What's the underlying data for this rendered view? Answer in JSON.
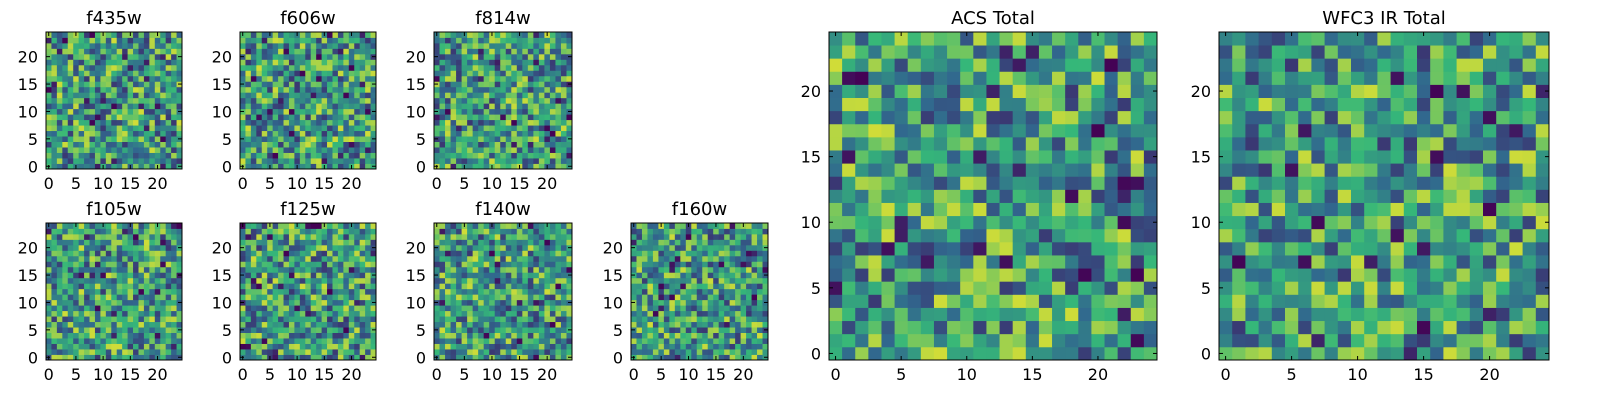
{
  "chart_data": [
    {
      "type": "heatmap",
      "title": "f435w",
      "x_ticks": [
        "0",
        "5",
        "10",
        "15",
        "20"
      ],
      "y_ticks": [
        "0",
        "5",
        "10",
        "15",
        "20"
      ],
      "xlim": [
        -0.5,
        24.5
      ],
      "ylim": [
        -0.5,
        24.5
      ],
      "grid_size": 25,
      "colormap": "viridis",
      "seed": 1,
      "colors": [
        "#440154",
        "#31688e",
        "#35b779",
        "#fde725"
      ]
    },
    {
      "type": "heatmap",
      "title": "f606w",
      "x_ticks": [
        "0",
        "5",
        "10",
        "15",
        "20"
      ],
      "y_ticks": [
        "0",
        "5",
        "10",
        "15",
        "20"
      ],
      "xlim": [
        -0.5,
        24.5
      ],
      "ylim": [
        -0.5,
        24.5
      ],
      "grid_size": 25,
      "colormap": "viridis",
      "seed": 2,
      "colors": [
        "#440154",
        "#31688e",
        "#35b779",
        "#fde725"
      ]
    },
    {
      "type": "heatmap",
      "title": "f814w",
      "x_ticks": [
        "0",
        "5",
        "10",
        "15",
        "20"
      ],
      "y_ticks": [
        "0",
        "5",
        "10",
        "15",
        "20"
      ],
      "xlim": [
        -0.5,
        24.5
      ],
      "ylim": [
        -0.5,
        24.5
      ],
      "grid_size": 25,
      "colormap": "viridis",
      "seed": 3,
      "colors": [
        "#440154",
        "#31688e",
        "#35b779",
        "#fde725"
      ]
    },
    {
      "type": "heatmap",
      "title": "f105w",
      "x_ticks": [
        "0",
        "5",
        "10",
        "15",
        "20"
      ],
      "y_ticks": [
        "0",
        "5",
        "10",
        "15",
        "20"
      ],
      "xlim": [
        -0.5,
        24.5
      ],
      "ylim": [
        -0.5,
        24.5
      ],
      "grid_size": 25,
      "colormap": "viridis",
      "seed": 4,
      "colors": [
        "#440154",
        "#31688e",
        "#35b779",
        "#fde725"
      ]
    },
    {
      "type": "heatmap",
      "title": "f125w",
      "x_ticks": [
        "0",
        "5",
        "10",
        "15",
        "20"
      ],
      "y_ticks": [
        "0",
        "5",
        "10",
        "15",
        "20"
      ],
      "xlim": [
        -0.5,
        24.5
      ],
      "ylim": [
        -0.5,
        24.5
      ],
      "grid_size": 25,
      "colormap": "viridis",
      "seed": 5,
      "colors": [
        "#440154",
        "#31688e",
        "#35b779",
        "#fde725"
      ]
    },
    {
      "type": "heatmap",
      "title": "f140w",
      "x_ticks": [
        "0",
        "5",
        "10",
        "15",
        "20"
      ],
      "y_ticks": [
        "0",
        "5",
        "10",
        "15",
        "20"
      ],
      "xlim": [
        -0.5,
        24.5
      ],
      "ylim": [
        -0.5,
        24.5
      ],
      "grid_size": 25,
      "colormap": "viridis",
      "seed": 6,
      "colors": [
        "#440154",
        "#31688e",
        "#35b779",
        "#fde725"
      ]
    },
    {
      "type": "heatmap",
      "title": "f160w",
      "x_ticks": [
        "0",
        "5",
        "10",
        "15",
        "20"
      ],
      "y_ticks": [
        "0",
        "5",
        "10",
        "15",
        "20"
      ],
      "xlim": [
        -0.5,
        24.5
      ],
      "ylim": [
        -0.5,
        24.5
      ],
      "grid_size": 25,
      "colormap": "viridis",
      "seed": 7,
      "colors": [
        "#440154",
        "#31688e",
        "#35b779",
        "#fde725"
      ]
    },
    {
      "type": "heatmap",
      "title": "ACS Total",
      "x_ticks": [
        "0",
        "5",
        "10",
        "15",
        "20"
      ],
      "y_ticks": [
        "0",
        "5",
        "10",
        "15",
        "20"
      ],
      "xlim": [
        -0.5,
        24.5
      ],
      "ylim": [
        -0.5,
        24.5
      ],
      "grid_size": 25,
      "colormap": "viridis",
      "seed": 8,
      "colors": [
        "#440154",
        "#31688e",
        "#35b779",
        "#fde725"
      ]
    },
    {
      "type": "heatmap",
      "title": "WFC3 IR Total",
      "x_ticks": [
        "0",
        "5",
        "10",
        "15",
        "20"
      ],
      "y_ticks": [
        "0",
        "5",
        "10",
        "15",
        "20"
      ],
      "xlim": [
        -0.5,
        24.5
      ],
      "ylim": [
        -0.5,
        24.5
      ],
      "grid_size": 25,
      "colormap": "viridis",
      "seed": 9,
      "colors": [
        "#440154",
        "#31688e",
        "#35b779",
        "#fde725"
      ]
    }
  ]
}
